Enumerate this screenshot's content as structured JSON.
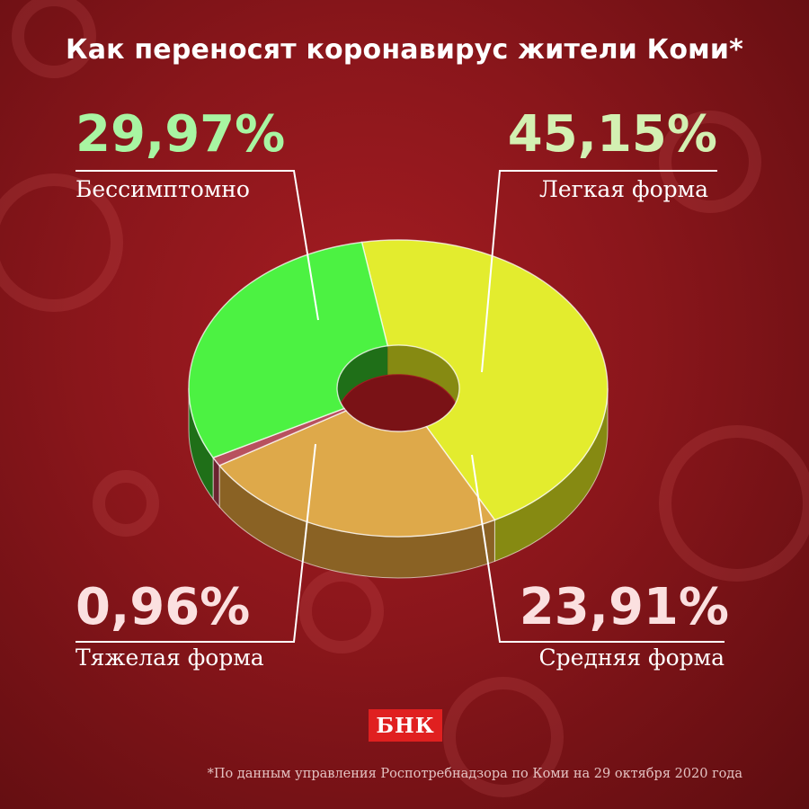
{
  "title": "Как переносят коронавирус жители Коми*",
  "footnote": "*По данным управления Роспотребнадзора по Коми на 29 октября 2020 года",
  "logo_text": "БНК",
  "chart_data": {
    "type": "pie",
    "style": "3d-donut",
    "title": "Как переносят коронавирус жители Коми*",
    "unit": "%",
    "series": [
      {
        "name": "Бессимптомно",
        "value": 29.97,
        "value_label": "29,97%",
        "color": "#4cf242",
        "side_color": "#1f6f18",
        "label_color": "#a8f5a2"
      },
      {
        "name": "Легкая форма",
        "value": 45.15,
        "value_label": "45,15%",
        "color": "#e3ec2e",
        "side_color": "#868a12",
        "label_color": "#d3f0b2"
      },
      {
        "name": "Средняя форма",
        "value": 23.91,
        "value_label": "23,91%",
        "color": "#dea94a",
        "side_color": "#8a6224",
        "label_color": "#fbe0e0"
      },
      {
        "name": "Тяжелая форма",
        "value": 0.96,
        "value_label": "0,96%",
        "color": "#b8515e",
        "side_color": "#6b2430",
        "label_color": "#fbe0e0"
      }
    ]
  }
}
